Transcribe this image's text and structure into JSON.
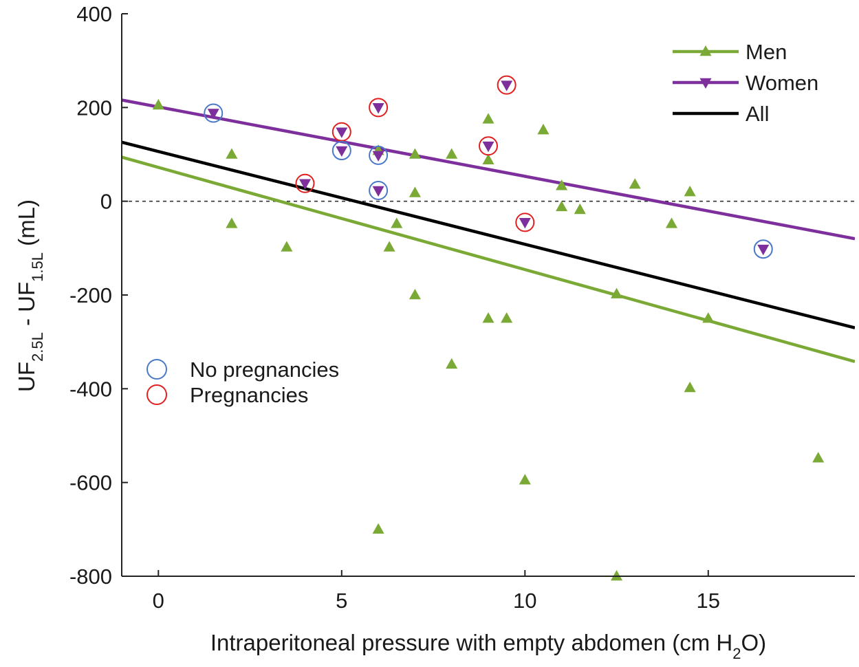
{
  "chart_data": {
    "type": "scatter",
    "xlabel": {
      "main": "Intraperitoneal pressure with empty abdomen (cm H",
      "sub": "2",
      "tail": "O)"
    },
    "ylabel": {
      "a": "UF",
      "a_sub": "2.5L",
      "mid": " - UF",
      "b_sub": "1.5L",
      "tail": " (mL)"
    },
    "xlim": [
      -1,
      19
    ],
    "ylim": [
      -800,
      400
    ],
    "xticks": [
      0,
      5,
      10,
      15
    ],
    "yticks": [
      -800,
      -600,
      -400,
      -200,
      0,
      200,
      400
    ],
    "grid": false,
    "reference_line": {
      "y": 0,
      "style": "dashed"
    },
    "legend": {
      "position": "top-right",
      "entries": [
        {
          "label": "Men",
          "color": "#7aaa35",
          "marker": "triangle-up"
        },
        {
          "label": "Women",
          "color": "#7d2f9c",
          "marker": "triangle-down"
        },
        {
          "label": "All",
          "color": "#000000",
          "marker": "none"
        }
      ]
    },
    "circle_legend": {
      "position": "left-middle",
      "entries": [
        {
          "label": "No pregnancies",
          "color": "#4a78c8"
        },
        {
          "label": "Pregnancies",
          "color": "#e02020"
        }
      ]
    },
    "series": [
      {
        "name": "Men",
        "color": "#7aaa35",
        "marker": "triangle-up",
        "points": [
          [
            0,
            205
          ],
          [
            2,
            100
          ],
          [
            2,
            -48
          ],
          [
            3.5,
            -98
          ],
          [
            6,
            108
          ],
          [
            6,
            -700
          ],
          [
            6.3,
            -98
          ],
          [
            6.5,
            -48
          ],
          [
            7,
            100
          ],
          [
            7,
            18
          ],
          [
            7,
            -200
          ],
          [
            8,
            100
          ],
          [
            8,
            -348
          ],
          [
            9,
            175
          ],
          [
            9,
            88
          ],
          [
            9,
            -250
          ],
          [
            9.5,
            -250
          ],
          [
            10,
            -595
          ],
          [
            10.5,
            152
          ],
          [
            11,
            33
          ],
          [
            11,
            -12
          ],
          [
            11.5,
            -18
          ],
          [
            12.5,
            -198
          ],
          [
            12.5,
            -800
          ],
          [
            13,
            36
          ],
          [
            14,
            -48
          ],
          [
            14.5,
            20
          ],
          [
            14.5,
            -398
          ],
          [
            15,
            -250
          ],
          [
            18,
            -548
          ]
        ],
        "fit": {
          "x": [
            -1,
            19
          ],
          "y": [
            94,
            -342
          ]
        }
      },
      {
        "name": "Women",
        "color": "#7d2f9c",
        "marker": "triangle-down",
        "points": [
          {
            "x": 1.5,
            "y": 188,
            "group": "No pregnancies"
          },
          {
            "x": 4,
            "y": 38,
            "group": "Pregnancies"
          },
          {
            "x": 5,
            "y": 148,
            "group": "Pregnancies"
          },
          {
            "x": 5,
            "y": 108,
            "group": "No pregnancies"
          },
          {
            "x": 6,
            "y": 200,
            "group": "Pregnancies"
          },
          {
            "x": 6,
            "y": 98,
            "group": "No pregnancies"
          },
          {
            "x": 6,
            "y": 23,
            "group": "No pregnancies"
          },
          {
            "x": 9,
            "y": 118,
            "group": "Pregnancies"
          },
          {
            "x": 9.5,
            "y": 248,
            "group": "Pregnancies"
          },
          {
            "x": 10,
            "y": -45,
            "group": "Pregnancies"
          },
          {
            "x": 16.5,
            "y": -102,
            "group": "No pregnancies"
          }
        ],
        "fit": {
          "x": [
            -1,
            19
          ],
          "y": [
            216,
            -80
          ]
        }
      },
      {
        "name": "All",
        "color": "#000000",
        "marker": "none",
        "fit": {
          "x": [
            -1,
            19
          ],
          "y": [
            126,
            -270
          ]
        }
      }
    ]
  }
}
